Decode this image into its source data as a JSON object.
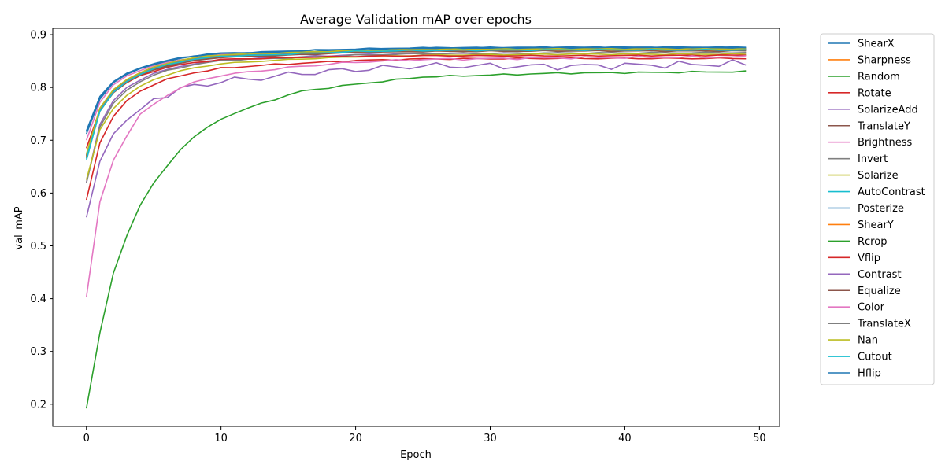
{
  "chart_data": {
    "type": "line",
    "title": "Average Validation mAP over epochs",
    "xlabel": "Epoch",
    "ylabel": "val_mAP",
    "xlim": [
      -2.5,
      51.5
    ],
    "ylim": [
      0.158,
      0.912
    ],
    "xticks": [
      0,
      10,
      20,
      30,
      40,
      50
    ],
    "yticks": [
      0.2,
      0.3,
      0.4,
      0.5,
      0.6,
      0.7,
      0.8,
      0.9
    ],
    "grid": false,
    "legend_placement": "outside-right",
    "x": [
      0,
      1,
      2,
      3,
      4,
      5,
      6,
      7,
      8,
      9,
      10,
      11,
      12,
      13,
      14,
      15,
      16,
      17,
      18,
      19,
      20,
      21,
      22,
      23,
      24,
      25,
      26,
      27,
      28,
      29,
      30,
      31,
      32,
      33,
      34,
      35,
      36,
      37,
      38,
      39,
      40,
      41,
      42,
      43,
      44,
      45,
      46,
      47,
      48,
      49
    ],
    "series": [
      {
        "name": "ShearX",
        "color": "#1f77b4",
        "key": [
          0.716,
          0.78,
          0.81,
          0.825,
          0.835,
          0.843,
          0.85,
          0.855,
          0.859,
          0.862,
          0.864,
          0.866,
          0.868,
          0.872,
          0.875,
          0.876,
          0.876
        ]
      },
      {
        "name": "Sharpness",
        "color": "#ff7f0e",
        "key": [
          0.672,
          0.76,
          0.795,
          0.815,
          0.828,
          0.838,
          0.845,
          0.851,
          0.855,
          0.858,
          0.861,
          0.863,
          0.866,
          0.869,
          0.871,
          0.872,
          0.872
        ]
      },
      {
        "name": "Random",
        "color": "#2ca02c",
        "key": [
          0.67,
          0.758,
          0.793,
          0.813,
          0.826,
          0.836,
          0.843,
          0.849,
          0.853,
          0.856,
          0.859,
          0.861,
          0.864,
          0.868,
          0.87,
          0.871,
          0.871
        ]
      },
      {
        "name": "Rotate",
        "color": "#d62728",
        "key": [
          0.587,
          0.695,
          0.745,
          0.775,
          0.793,
          0.806,
          0.815,
          0.822,
          0.828,
          0.832,
          0.836,
          0.842,
          0.846,
          0.851,
          0.854,
          0.855,
          0.855
        ]
      },
      {
        "name": "SolarizeAdd",
        "color": "#9467bd",
        "key": [
          0.62,
          0.73,
          0.775,
          0.8,
          0.815,
          0.826,
          0.834,
          0.84,
          0.845,
          0.849,
          0.852,
          0.855,
          0.858,
          0.862,
          0.864,
          0.865,
          0.865
        ]
      },
      {
        "name": "TranslateY",
        "color": "#8c564b",
        "key": [
          0.668,
          0.756,
          0.791,
          0.811,
          0.824,
          0.834,
          0.841,
          0.847,
          0.851,
          0.855,
          0.858,
          0.86,
          0.863,
          0.867,
          0.869,
          0.87,
          0.87
        ]
      },
      {
        "name": "Brightness",
        "color": "#e377c2",
        "key": [
          0.7,
          0.772,
          0.805,
          0.822,
          0.833,
          0.841,
          0.847,
          0.852,
          0.856,
          0.859,
          0.862,
          0.864,
          0.866,
          0.869,
          0.871,
          0.872,
          0.872
        ]
      },
      {
        "name": "Invert",
        "color": "#7f7f7f",
        "key": [
          0.619,
          0.725,
          0.77,
          0.795,
          0.811,
          0.823,
          0.832,
          0.838,
          0.843,
          0.847,
          0.851,
          0.854,
          0.857,
          0.861,
          0.864,
          0.865,
          0.866
        ]
      },
      {
        "name": "Solarize",
        "color": "#bcbd22",
        "key": [
          0.625,
          0.72,
          0.76,
          0.785,
          0.802,
          0.815,
          0.824,
          0.831,
          0.837,
          0.841,
          0.845,
          0.85,
          0.854,
          0.858,
          0.861,
          0.863,
          0.863
        ]
      },
      {
        "name": "AutoContrast",
        "color": "#17becf",
        "key": [
          0.662,
          0.757,
          0.793,
          0.813,
          0.826,
          0.836,
          0.844,
          0.85,
          0.854,
          0.857,
          0.86,
          0.862,
          0.865,
          0.869,
          0.871,
          0.872,
          0.872
        ]
      },
      {
        "name": "Posterize",
        "color": "#1f77b4",
        "key": [
          0.712,
          0.778,
          0.809,
          0.825,
          0.836,
          0.844,
          0.85,
          0.855,
          0.859,
          0.862,
          0.864,
          0.866,
          0.868,
          0.871,
          0.873,
          0.874,
          0.874
        ]
      },
      {
        "name": "ShearY",
        "color": "#ff7f0e",
        "key": [
          0.669,
          0.758,
          0.794,
          0.814,
          0.827,
          0.837,
          0.844,
          0.85,
          0.854,
          0.857,
          0.86,
          0.862,
          0.865,
          0.868,
          0.87,
          0.871,
          0.871
        ]
      },
      {
        "name": "Rcrop",
        "color": "#2ca02c",
        "key": [
          0.192,
          0.335,
          0.448,
          0.519,
          0.577,
          0.618,
          0.652,
          0.683,
          0.706,
          0.724,
          0.741,
          0.77,
          0.793,
          0.806,
          0.82,
          0.827,
          0.83
        ]
      },
      {
        "name": "Vflip",
        "color": "#d62728",
        "key": [
          0.685,
          0.758,
          0.79,
          0.809,
          0.822,
          0.831,
          0.838,
          0.843,
          0.847,
          0.85,
          0.853,
          0.855,
          0.857,
          0.859,
          0.86,
          0.86,
          0.861
        ]
      },
      {
        "name": "Contrast",
        "color": "#9467bd",
        "key": [
          0.554,
          0.66,
          0.712,
          0.738,
          0.755,
          0.78,
          0.786,
          0.795,
          0.804,
          0.806,
          0.812,
          0.818,
          0.827,
          0.834,
          0.841,
          0.84,
          0.845
        ]
      },
      {
        "name": "Equalize",
        "color": "#8c564b",
        "key": [
          0.666,
          0.755,
          0.79,
          0.81,
          0.823,
          0.833,
          0.84,
          0.846,
          0.85,
          0.854,
          0.857,
          0.859,
          0.862,
          0.866,
          0.868,
          0.869,
          0.869
        ]
      },
      {
        "name": "Color",
        "color": "#e377c2",
        "key": [
          0.403,
          0.583,
          0.662,
          0.708,
          0.748,
          0.768,
          0.786,
          0.799,
          0.809,
          0.817,
          0.823,
          0.832,
          0.84,
          0.848,
          0.853,
          0.856,
          0.858
        ]
      },
      {
        "name": "TranslateX",
        "color": "#7f7f7f",
        "key": [
          0.671,
          0.759,
          0.794,
          0.814,
          0.827,
          0.837,
          0.845,
          0.851,
          0.855,
          0.858,
          0.861,
          0.863,
          0.866,
          0.869,
          0.871,
          0.872,
          0.872
        ]
      },
      {
        "name": "Nan",
        "color": "#bcbd22",
        "key": [
          0.674,
          0.761,
          0.796,
          0.815,
          0.828,
          0.838,
          0.846,
          0.852,
          0.856,
          0.859,
          0.862,
          0.864,
          0.867,
          0.87,
          0.872,
          0.873,
          0.873
        ]
      },
      {
        "name": "Cutout",
        "color": "#17becf",
        "key": [
          0.665,
          0.755,
          0.791,
          0.811,
          0.825,
          0.835,
          0.843,
          0.849,
          0.853,
          0.856,
          0.859,
          0.861,
          0.864,
          0.868,
          0.87,
          0.871,
          0.871
        ]
      },
      {
        "name": "Hflip",
        "color": "#1f77b4",
        "key": [
          0.718,
          0.783,
          0.811,
          0.827,
          0.838,
          0.845,
          0.851,
          0.856,
          0.86,
          0.863,
          0.865,
          0.867,
          0.87,
          0.873,
          0.875,
          0.876,
          0.876
        ]
      }
    ]
  }
}
